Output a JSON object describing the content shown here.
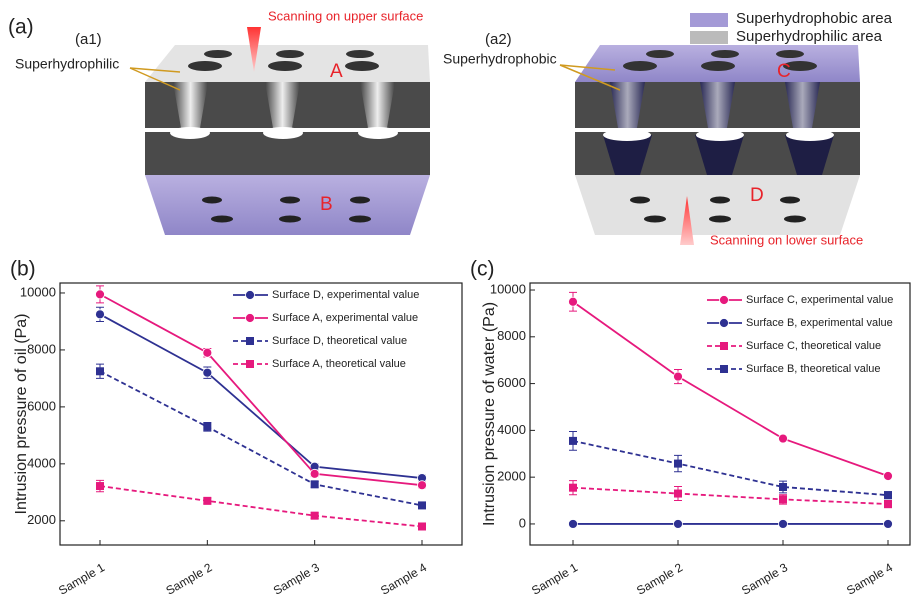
{
  "diagram": {
    "panel_a": "(a)",
    "panel_a1": "(a1)",
    "panel_a2": "(a2)",
    "scan_upper": "Scanning on upper surface",
    "label_philic": "Superhydrophilic",
    "surface_a": "A",
    "surface_b": "B",
    "legend_phobic": "Superhydrophobic area",
    "legend_philic": "Superhydrophilic area",
    "label_phobic": "Superhydrophobic",
    "surface_c": "C",
    "surface_d": "D",
    "scan_lower": "Scanning on lower surface"
  },
  "chart_data": [
    {
      "type": "line",
      "panel_label": "(b)",
      "y_label": "Intrusion pressure of oil (Pa)",
      "categories": [
        "Sample 1",
        "Sample 2",
        "Sample 3",
        "Sample 4"
      ],
      "ylim": [
        1150,
        10350
      ],
      "yticks": [
        2000,
        4000,
        6000,
        8000,
        10000
      ],
      "series": [
        {
          "name": "Surface D, experimental value",
          "color": "#2e3192",
          "dashed": false,
          "marker": "circle",
          "values": [
            9250,
            7200,
            3900,
            3500
          ],
          "errors": [
            250,
            200,
            100,
            100
          ]
        },
        {
          "name": "Surface A, experimental value",
          "color": "#e6197d",
          "dashed": false,
          "marker": "circle",
          "values": [
            9950,
            7900,
            3650,
            3250
          ],
          "errors": [
            300,
            150,
            100,
            100
          ]
        },
        {
          "name": "Surface D, theoretical value",
          "color": "#2e3192",
          "dashed": true,
          "marker": "square",
          "values": [
            7250,
            5300,
            3280,
            2540
          ],
          "errors": [
            250,
            150,
            100,
            100
          ]
        },
        {
          "name": "Surface A, theoretical value",
          "color": "#e6197d",
          "dashed": true,
          "marker": "square",
          "values": [
            3220,
            2700,
            2180,
            1800
          ],
          "errors": [
            200,
            100,
            100,
            100
          ]
        }
      ]
    },
    {
      "type": "line",
      "panel_label": "(c)",
      "y_label": "Intrusion pressure of water (Pa)",
      "categories": [
        "Sample 1",
        "Sample 2",
        "Sample 3",
        "Sample 4"
      ],
      "ylim": [
        -900,
        10300
      ],
      "yticks": [
        0,
        2000,
        4000,
        6000,
        8000,
        10000
      ],
      "series": [
        {
          "name": "Surface C, experimental value",
          "color": "#e6197d",
          "dashed": false,
          "marker": "circle",
          "values": [
            9500,
            6300,
            3650,
            2050
          ],
          "errors": [
            400,
            300,
            100,
            100
          ]
        },
        {
          "name": "Surface B, experimental value",
          "color": "#2e3192",
          "dashed": false,
          "marker": "circle",
          "values": [
            0,
            0,
            0,
            0
          ],
          "errors": [
            0,
            0,
            0,
            0
          ]
        },
        {
          "name": "Surface C, theoretical value",
          "color": "#e6197d",
          "dashed": true,
          "marker": "square",
          "values": [
            1550,
            1300,
            1050,
            850
          ],
          "errors": [
            300,
            300,
            200,
            150
          ]
        },
        {
          "name": "Surface B, theoretical value",
          "color": "#2e3192",
          "dashed": true,
          "marker": "square",
          "values": [
            3550,
            2580,
            1580,
            1230
          ],
          "errors": [
            400,
            350,
            250,
            150
          ]
        }
      ]
    }
  ]
}
